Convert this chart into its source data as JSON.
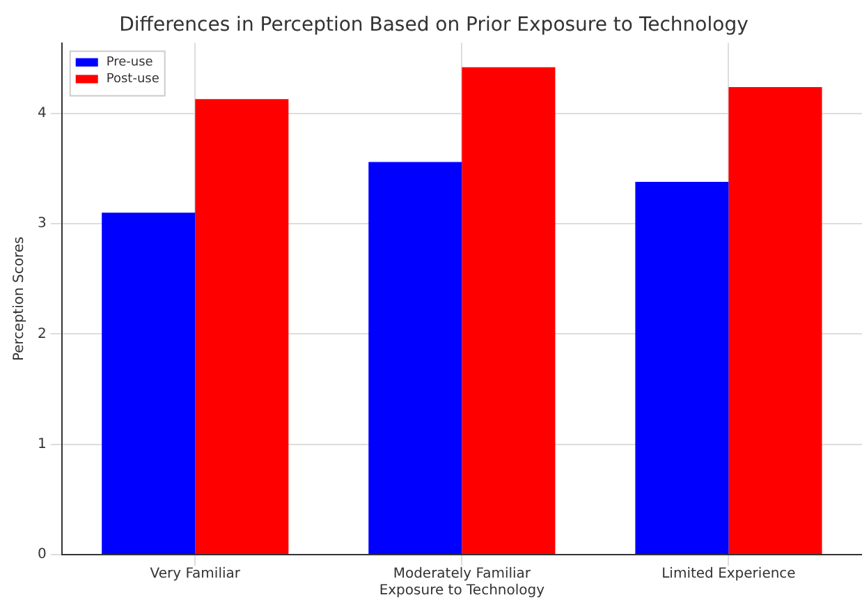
{
  "chart_data": {
    "type": "bar",
    "title": "Differences in Perception Based on Prior Exposure to Technology",
    "xlabel": "Exposure to Technology",
    "ylabel": "Perception Scores",
    "categories": [
      "Very Familiar",
      "Moderately Familiar",
      "Limited Experience"
    ],
    "series": [
      {
        "name": "Pre-use",
        "color": "#0000ff",
        "values": [
          3.1,
          3.56,
          3.38
        ]
      },
      {
        "name": "Post-use",
        "color": "#ff0000",
        "values": [
          4.13,
          4.42,
          4.24
        ]
      }
    ],
    "ylim": [
      0,
      4.64
    ],
    "yticks": [
      0,
      1,
      2,
      3,
      4
    ],
    "grid": true,
    "legend": "top left"
  }
}
